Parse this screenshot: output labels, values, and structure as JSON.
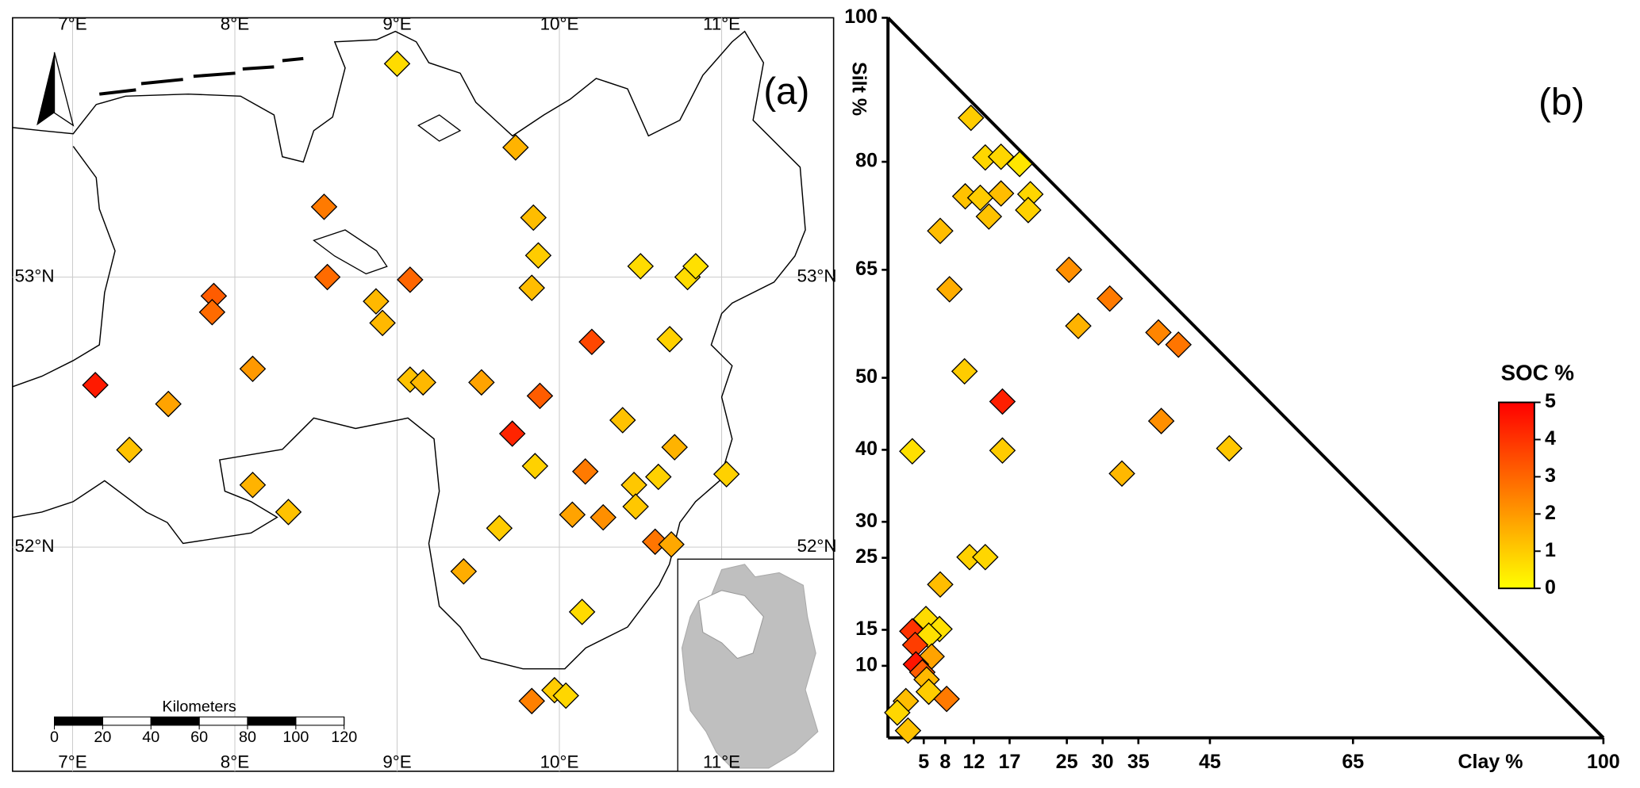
{
  "chart_data": [
    {
      "type": "map",
      "label": "(a)",
      "xlim": [
        6.63,
        11.69
      ],
      "ylim": [
        51.17,
        53.96
      ],
      "xticks": [
        {
          "value": 7,
          "label": "7°E"
        },
        {
          "value": 8,
          "label": "8°E"
        },
        {
          "value": 9,
          "label": "9°E"
        },
        {
          "value": 10,
          "label": "10°E"
        },
        {
          "value": 11,
          "label": "11°E"
        }
      ],
      "yticks": [
        {
          "value": 52,
          "label": "52°N"
        },
        {
          "value": 53,
          "label": "53°N"
        }
      ],
      "x": [
        9.0,
        9.73,
        8.55,
        9.84,
        9.87,
        10.5,
        10.79,
        10.84,
        8.57,
        9.08,
        9.83,
        7.87,
        7.86,
        8.87,
        8.91,
        10.2,
        10.68,
        8.11,
        7.14,
        9.08,
        9.16,
        9.52,
        9.88,
        7.59,
        10.39,
        9.71,
        10.71,
        7.35,
        9.85,
        10.16,
        10.61,
        10.46,
        11.03,
        8.11,
        10.47,
        8.33,
        10.08,
        10.27,
        9.63,
        10.59,
        10.69,
        9.41,
        10.14,
        9.83,
        9.97,
        10.04
      ],
      "y": [
        53.79,
        53.48,
        53.26,
        53.22,
        53.08,
        53.04,
        53.0,
        53.04,
        53.0,
        52.99,
        52.96,
        52.93,
        52.87,
        52.91,
        52.83,
        52.76,
        52.77,
        52.66,
        52.6,
        52.62,
        52.61,
        52.61,
        52.56,
        52.53,
        52.47,
        52.42,
        52.37,
        52.36,
        52.3,
        52.28,
        52.26,
        52.23,
        52.27,
        52.23,
        52.15,
        52.13,
        52.12,
        52.11,
        52.07,
        52.02,
        52.01,
        51.91,
        51.76,
        51.43,
        51.47,
        51.45
      ],
      "values": [
        0.7,
        1.5,
        2.6,
        1.3,
        1.0,
        0.7,
        0.7,
        0.6,
        2.9,
        3.0,
        1.3,
        3.2,
        2.9,
        1.4,
        1.4,
        3.6,
        0.9,
        2.0,
        4.5,
        1.2,
        1.4,
        1.8,
        3.2,
        1.8,
        1.2,
        4.3,
        1.5,
        1.2,
        0.9,
        2.6,
        0.9,
        1.1,
        0.9,
        1.5,
        1.1,
        1.2,
        1.8,
        2.2,
        1.0,
        2.7,
        1.7,
        1.6,
        0.7,
        2.5,
        1.0,
        0.8
      ],
      "scale_bar": {
        "title": "Kilometers",
        "ticks": [
          0,
          20,
          40,
          60,
          80,
          100,
          120
        ]
      }
    },
    {
      "type": "scatter",
      "label": "(b)",
      "x_label": "Clay %",
      "y_label": "Silt %",
      "xlim": [
        0,
        100
      ],
      "ylim": [
        0,
        100
      ],
      "xticks": [
        5,
        8,
        12,
        17,
        25,
        30,
        35,
        45,
        65,
        100
      ],
      "yticks": [
        10,
        15,
        25,
        30,
        40,
        50,
        65,
        80,
        100
      ],
      "x": [
        11.6,
        13.6,
        15.8,
        18.4,
        10.8,
        12.9,
        15.8,
        14.1,
        19.9,
        19.6,
        7.3,
        25.3,
        8.6,
        31.0,
        26.6,
        37.8,
        40.6,
        10.7,
        16.0,
        38.2,
        3.4,
        16.0,
        47.7,
        32.7,
        11.4,
        13.6,
        7.3,
        5.3,
        7.2,
        3.4,
        5.7,
        3.8,
        6.1,
        3.9,
        4.8,
        5.4,
        5.7,
        8.2,
        2.5,
        1.3,
        2.8
      ],
      "y": [
        86.1,
        80.6,
        80.7,
        79.7,
        75.2,
        75.0,
        75.6,
        72.4,
        75.5,
        73.3,
        70.4,
        65.0,
        62.3,
        61.0,
        57.2,
        56.3,
        54.6,
        50.9,
        46.7,
        44.0,
        39.8,
        39.9,
        40.2,
        36.7,
        25.1,
        25.1,
        21.3,
        16.5,
        15.1,
        14.8,
        14.2,
        12.9,
        11.3,
        10.2,
        9.1,
        8.1,
        6.4,
        5.4,
        5.1,
        3.5,
        1.0
      ],
      "values": [
        1.0,
        0.8,
        0.8,
        0.5,
        1.2,
        1.0,
        1.3,
        1.2,
        0.8,
        0.9,
        1.3,
        2.2,
        1.6,
        2.6,
        1.5,
        2.4,
        2.7,
        1.0,
        4.4,
        2.2,
        0.6,
        1.0,
        1.1,
        1.4,
        0.9,
        0.8,
        1.3,
        0.7,
        0.6,
        4.0,
        0.6,
        3.8,
        1.8,
        4.6,
        3.2,
        1.4,
        1.0,
        2.6,
        1.3,
        0.8,
        1.2
      ],
      "colorbar": {
        "title": "SOC %",
        "lim": [
          0,
          5
        ],
        "ticks": [
          0,
          1,
          2,
          3,
          4,
          5
        ],
        "colors": [
          "#ffff00",
          "#ff0000"
        ]
      }
    }
  ]
}
